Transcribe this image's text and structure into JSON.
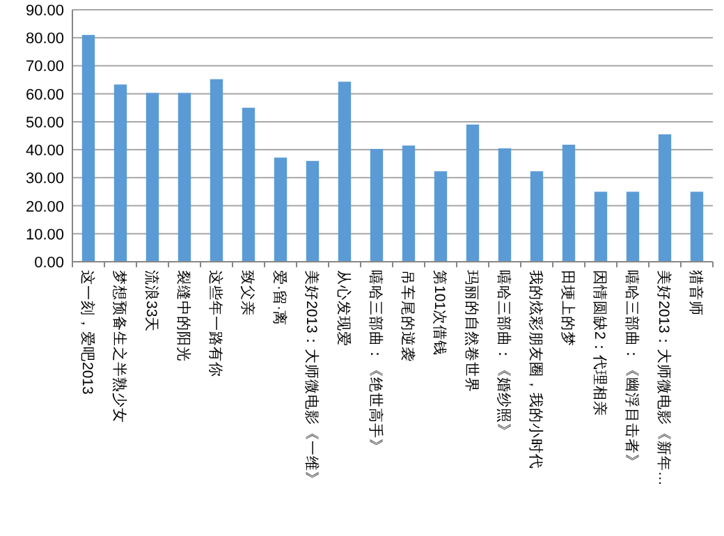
{
  "chart_data": {
    "type": "bar",
    "categories": [
      "这一刻，爱吧2013",
      "梦想预备生之半熟少女",
      "流浪33天",
      "裂缝中的阳光",
      "这些年一路有你",
      "致父亲",
      "爱·留·离",
      "美好2013：大师微电影《一维》",
      "从心发现爱",
      "嘻哈三部曲：《绝世高手》",
      "吊车尾的逆袭",
      "第101次借钱",
      "玛丽的自然卷世界",
      "嘻哈三部曲：《婚纱照》",
      "我的炫彩朋友圈，我的小时代",
      "田埂上的梦",
      "因情圆缺2：代理相亲",
      "嘻哈三部曲：《幽浮目击者》",
      "美好2013：大师微电影《新年…",
      "猎音师"
    ],
    "values": [
      81,
      63.3,
      60.3,
      60.3,
      65.2,
      55,
      37.2,
      36,
      64.3,
      40.3,
      41.5,
      32.3,
      49,
      40.5,
      32.3,
      41.8,
      25,
      25,
      45.5,
      25
    ],
    "color": "#5b9bd5",
    "ylim": [
      0,
      90
    ],
    "yticks": [
      {
        "value": 0,
        "label": "0.00"
      },
      {
        "value": 10,
        "label": "10.00"
      },
      {
        "value": 20,
        "label": "20.00"
      },
      {
        "value": 30,
        "label": "30.00"
      },
      {
        "value": 40,
        "label": "40.00"
      },
      {
        "value": 50,
        "label": "50.00"
      },
      {
        "value": 60,
        "label": "60.00"
      },
      {
        "value": 70,
        "label": "70.00"
      },
      {
        "value": 80,
        "label": "80.00"
      },
      {
        "value": 90,
        "label": "90.00"
      }
    ],
    "grid": "y"
  }
}
